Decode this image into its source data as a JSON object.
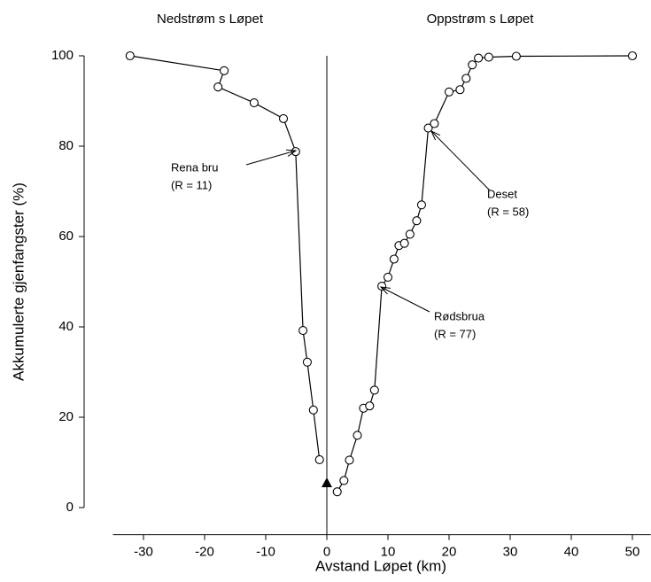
{
  "chart_data": {
    "type": "line",
    "top_labels": [
      "Nedstrøm s Løpet",
      "Oppstrøm s Løpet"
    ],
    "x_label": "Avstand Løpet (km)",
    "y_label": "Akkumulerte gjenfangster (%)",
    "xlim": [
      -35,
      53
    ],
    "xticks": [
      -30,
      -20,
      -10,
      0,
      10,
      20,
      30,
      40,
      50
    ],
    "ylim": [
      -6,
      100
    ],
    "yticks": [
      0,
      20,
      40,
      60,
      80,
      100
    ],
    "series": [
      {
        "color": "#000000",
        "marker": "circle",
        "x": [
          -32.2,
          -16.8,
          -17.8,
          -11.9,
          -7.1,
          -5.1,
          -3.9,
          -3.2,
          -2.2,
          -1.2
        ],
        "values": [
          100,
          96.7,
          93.1,
          89.6,
          86.1,
          78.8,
          39.2,
          32.2,
          21.6,
          10.6
        ]
      },
      {
        "color": "#000000",
        "marker": "circle",
        "x": [
          1.7,
          2.8,
          3.7,
          5,
          6,
          7,
          7.8,
          9,
          10,
          11,
          11.8,
          12.7,
          13.6,
          14.7,
          15.5,
          16.6,
          17.6,
          20,
          21.8,
          22.8,
          23.8,
          24.8,
          26.5,
          31,
          50
        ],
        "values": [
          3.5,
          6,
          10.5,
          16,
          22,
          22.5,
          26,
          49,
          51,
          55,
          58,
          58.5,
          60.5,
          63.5,
          67,
          84,
          85,
          92,
          92.5,
          95,
          98,
          99.5,
          99.7,
          99.9,
          100
        ]
      },
      {
        "color": "#000000",
        "marker": "triangle",
        "x": [
          0
        ],
        "values": [
          5.5
        ]
      }
    ],
    "annotations": [
      {
        "lines": [
          "Rena bru",
          "(R = 11)"
        ]
      },
      {
        "lines": [
          "Deset",
          "(R = 58)"
        ]
      },
      {
        "lines": [
          "Rødsbrua",
          "(R = 77)"
        ]
      }
    ]
  }
}
